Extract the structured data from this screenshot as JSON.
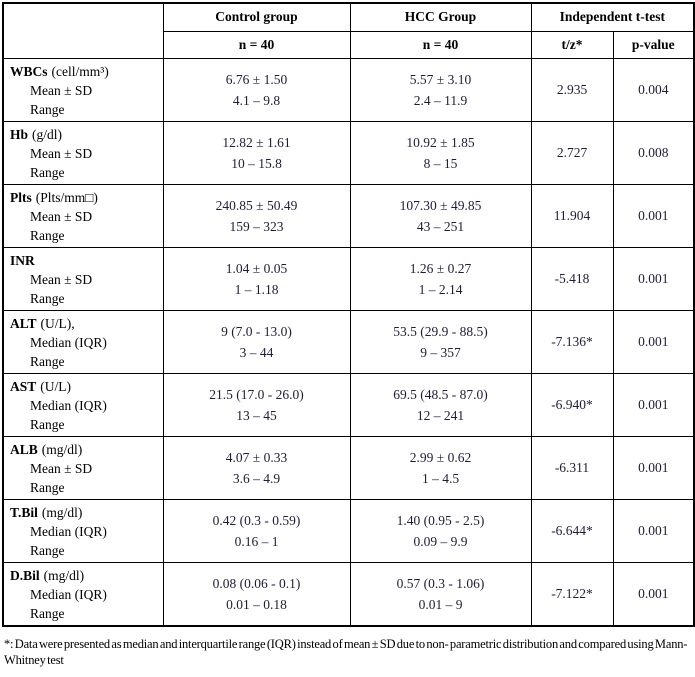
{
  "header": {
    "control_group": "Control group",
    "hcc_group": "HCC Group",
    "ttest": "Independent t-test",
    "control_n": "n = 40",
    "hcc_n": "n = 40",
    "tz_label": "t/z*",
    "p_label": "p-value"
  },
  "rows": [
    {
      "name": "WBCs",
      "unit": "(cell/mm³)",
      "stat_label": "Mean ± SD",
      "range_label": "Range",
      "control_value": "6.76 ± 1.50",
      "control_range": "4.1 – 9.8",
      "hcc_value": "5.57 ± 3.10",
      "hcc_range": "2.4 – 11.9",
      "tz": "2.935",
      "p": "0.004"
    },
    {
      "name": "Hb",
      "unit": "(g/dl)",
      "stat_label": "Mean ± SD",
      "range_label": "Range",
      "control_value": "12.82 ± 1.61",
      "control_range": "10 – 15.8",
      "hcc_value": "10.92 ± 1.85",
      "hcc_range": "8 – 15",
      "tz": "2.727",
      "p": "0.008"
    },
    {
      "name": "Plts",
      "unit": "(Plts/mm□)",
      "stat_label": "Mean ± SD",
      "range_label": "Range",
      "control_value": "240.85 ± 50.49",
      "control_range": "159 – 323",
      "hcc_value": "107.30 ± 49.85",
      "hcc_range": "43 – 251",
      "tz": "11.904",
      "p": "0.001"
    },
    {
      "name": "INR",
      "unit": "",
      "stat_label": "Mean ± SD",
      "range_label": "Range",
      "control_value": "1.04 ± 0.05",
      "control_range": "1 – 1.18",
      "hcc_value": "1.26 ± 0.27",
      "hcc_range": "1 – 2.14",
      "tz": "-5.418",
      "p": "0.001"
    },
    {
      "name": "ALT",
      "unit": "(U/L),",
      "stat_label": "Median (IQR)",
      "range_label": "Range",
      "control_value": "9 (7.0 - 13.0)",
      "control_range": "3 – 44",
      "hcc_value": "53.5 (29.9 - 88.5)",
      "hcc_range": "9 – 357",
      "tz": "-7.136*",
      "p": "0.001"
    },
    {
      "name": "AST",
      "unit": "(U/L)",
      "stat_label": "Median (IQR)",
      "range_label": "Range",
      "control_value": "21.5 (17.0 - 26.0)",
      "control_range": "13 – 45",
      "hcc_value": "69.5 (48.5 - 87.0)",
      "hcc_range": "12 – 241",
      "tz": "-6.940*",
      "p": "0.001"
    },
    {
      "name": "ALB",
      "unit": "(mg/dl)",
      "stat_label": "Mean ± SD",
      "range_label": "Range",
      "control_value": "4.07 ± 0.33",
      "control_range": "3.6 – 4.9",
      "hcc_value": "2.99 ± 0.62",
      "hcc_range": "1 – 4.5",
      "tz": "-6.311",
      "p": "0.001"
    },
    {
      "name": "T.Bil",
      "unit": "(mg/dl)",
      "stat_label": "Median (IQR)",
      "range_label": "Range",
      "control_value": "0.42 (0.3 - 0.59)",
      "control_range": "0.16 – 1",
      "hcc_value": "1.40 (0.95 - 2.5)",
      "hcc_range": "0.09 – 9.9",
      "tz": "-6.644*",
      "p": "0.001"
    },
    {
      "name": "D.Bil",
      "unit": "(mg/dl)",
      "stat_label": "Median (IQR)",
      "range_label": "Range",
      "control_value": "0.08 (0.06 - 0.1)",
      "control_range": "0.01 – 0.18",
      "hcc_value": "0.57 (0.3 - 1.06)",
      "hcc_range": "0.01 – 9",
      "tz": "-7.122*",
      "p": "0.001"
    }
  ],
  "footnote": "*: Data were presented as median and interquartile range (IQR) instead of mean ± SD due to non- parametric distribution and compared using Mann-Whitney test",
  "colors": {
    "border": "#000000",
    "value_text": "#1d1d38",
    "label_text": "#000000"
  }
}
